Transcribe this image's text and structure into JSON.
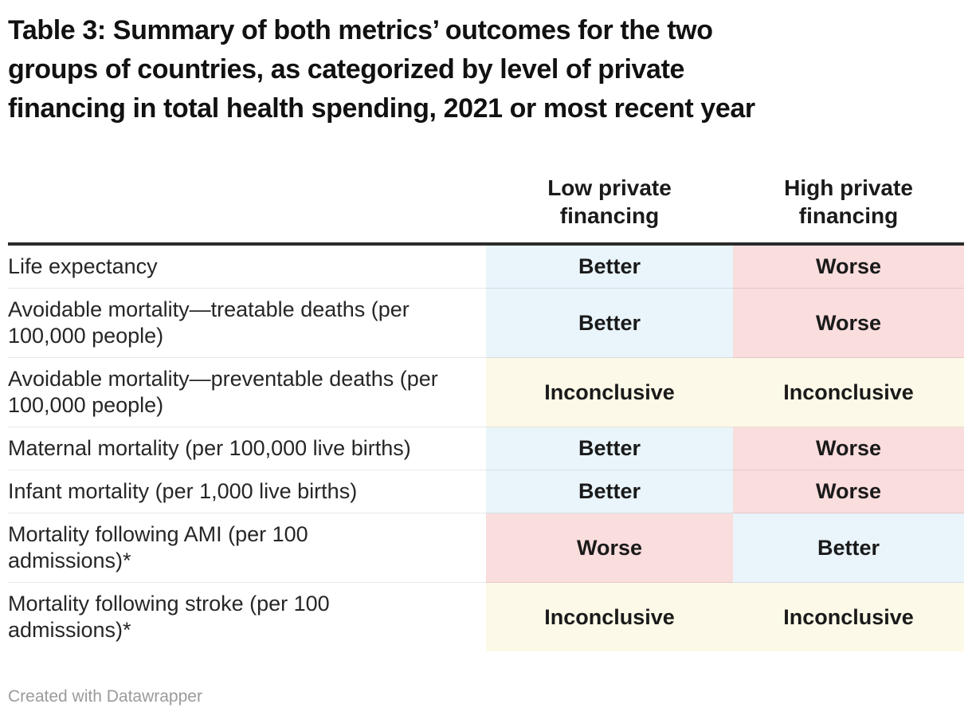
{
  "chart_data": {
    "type": "table",
    "title": "Table 3: Summary of both metrics’ outcomes for the two groups of countries, as categorized by level of private financing in total health spending, 2021 or most recent year",
    "columns": [
      "Low private financing",
      "High private financing"
    ],
    "rows": [
      {
        "metric": "Life expectancy",
        "low": "Better",
        "high": "Worse"
      },
      {
        "metric": "Avoidable mortality—treatable deaths (per 100,000 people)",
        "low": "Better",
        "high": "Worse"
      },
      {
        "metric": "Avoidable mortality—preventable deaths (per 100,000 people)",
        "low": "Inconclusive",
        "high": "Inconclusive"
      },
      {
        "metric": "Maternal mortality (per 100,000 live births)",
        "low": "Better",
        "high": "Worse"
      },
      {
        "metric": "Infant mortality (per 1,000 live births)",
        "low": "Better",
        "high": "Worse"
      },
      {
        "metric": "Mortality following AMI (per 100 admissions)*",
        "low": "Worse",
        "high": "Better"
      },
      {
        "metric": "Mortality following stroke (per 100 admissions)*",
        "low": "Inconclusive",
        "high": "Inconclusive"
      }
    ],
    "cell_colors": {
      "Better": "#e9f4fb",
      "Worse": "#fadddd",
      "Inconclusive": "#fdf9e8"
    },
    "footer": "Created with Datawrapper"
  },
  "header": {
    "title": "Table 3: Summary of both metrics’ outcomes for the two\ngroups of countries, as categorized by level of private\nfinancing in total health spending, 2021 or most recent year"
  },
  "table": {
    "col_low": "Low private\nfinancing",
    "col_high": "High private\nfinancing",
    "rows": [
      {
        "label": "Life expectancy",
        "low": {
          "text": "Better",
          "status": "better"
        },
        "high": {
          "text": "Worse",
          "status": "worse"
        }
      },
      {
        "label": "Avoidable mortality—treatable deaths (per\n100,000 people)",
        "low": {
          "text": "Better",
          "status": "better"
        },
        "high": {
          "text": "Worse",
          "status": "worse"
        }
      },
      {
        "label": "Avoidable mortality—preventable deaths (per\n100,000 people)",
        "low": {
          "text": "Inconclusive",
          "status": "inconclusive"
        },
        "high": {
          "text": "Inconclusive",
          "status": "inconclusive"
        }
      },
      {
        "label": "Maternal mortality (per 100,000 live births)",
        "low": {
          "text": "Better",
          "status": "better"
        },
        "high": {
          "text": "Worse",
          "status": "worse"
        }
      },
      {
        "label": "Infant mortality (per 1,000 live births)",
        "low": {
          "text": "Better",
          "status": "better"
        },
        "high": {
          "text": "Worse",
          "status": "worse"
        }
      },
      {
        "label": "Mortality following AMI (per 100\nadmissions)*",
        "low": {
          "text": "Worse",
          "status": "worse"
        },
        "high": {
          "text": "Better",
          "status": "better"
        }
      },
      {
        "label": "Mortality following stroke (per 100\nadmissions)*",
        "low": {
          "text": "Inconclusive",
          "status": "inconclusive"
        },
        "high": {
          "text": "Inconclusive",
          "status": "inconclusive"
        }
      }
    ]
  },
  "footer": {
    "credit": "Created with Datawrapper"
  },
  "colors": {
    "better_bg": "#e9f4fb",
    "worse_bg": "#fadddd",
    "inconclusive_bg": "#fdf9e8",
    "header_rule": "#2b2b2b",
    "row_divider": "#e6e6e6",
    "title_text": "#111111",
    "cell_text": "#1a1a1a",
    "credit_text": "#9b9b9b"
  }
}
